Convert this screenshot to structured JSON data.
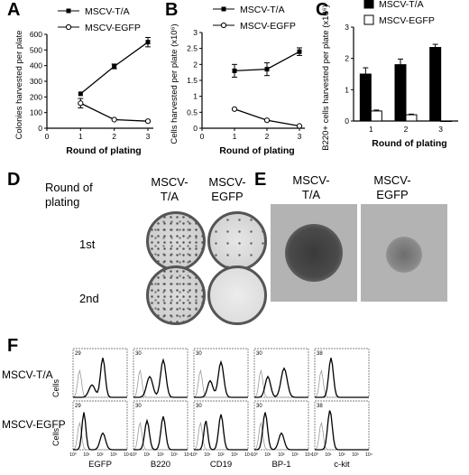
{
  "panels": {
    "A": {
      "letter": "A"
    },
    "B": {
      "letter": "B"
    },
    "C": {
      "letter": "C"
    },
    "D": {
      "letter": "D"
    },
    "E": {
      "letter": "E"
    },
    "F": {
      "letter": "F"
    }
  },
  "chart_data": [
    {
      "id": "A",
      "type": "line",
      "xlabel": "Round of plating",
      "ylabel": "Colonies harvested per plate",
      "xlim": [
        0,
        3
      ],
      "ylim": [
        0,
        600
      ],
      "xticks": [
        "0",
        "1",
        "2",
        "3"
      ],
      "yticks": [
        "0",
        "100",
        "200",
        "300",
        "400",
        "500",
        "600"
      ],
      "legend_position": "top-left",
      "series": [
        {
          "name": "MSCV-T/A",
          "marker": "filled-square",
          "x": [
            1,
            2,
            3
          ],
          "y": [
            220,
            395,
            550
          ],
          "err": [
            0,
            15,
            30
          ]
        },
        {
          "name": "MSCV-EGFP",
          "marker": "open-circle",
          "x": [
            1,
            2,
            3
          ],
          "y": [
            160,
            55,
            45
          ],
          "err": [
            30,
            0,
            0
          ]
        }
      ]
    },
    {
      "id": "B",
      "type": "line",
      "xlabel": "Round of plating",
      "ylabel": "Cells harvested per plate (x10⁶)",
      "xlim": [
        0,
        3
      ],
      "ylim": [
        0,
        3
      ],
      "xticks": [
        "0",
        "1",
        "2",
        "3"
      ],
      "yticks": [
        "0",
        "0.5",
        "1",
        "1.5",
        "2",
        "2.5",
        "3"
      ],
      "legend_position": "top-left",
      "series": [
        {
          "name": "MSCV-T/A",
          "marker": "filled-square",
          "x": [
            1,
            2,
            3
          ],
          "y": [
            1.8,
            1.85,
            2.4
          ],
          "err": [
            0.2,
            0.2,
            0.12
          ]
        },
        {
          "name": "MSCV-EGFP",
          "marker": "open-circle",
          "x": [
            1,
            2,
            3
          ],
          "y": [
            0.6,
            0.25,
            0.07
          ],
          "err": [
            0,
            0,
            0
          ]
        }
      ]
    },
    {
      "id": "C",
      "type": "bar",
      "xlabel": "Round of plating",
      "ylabel": "B220+ cells harvested per plate (x10⁶)",
      "categories": [
        "1",
        "2",
        "3"
      ],
      "ylim": [
        0,
        3
      ],
      "yticks": [
        "0",
        "1",
        "2",
        "3"
      ],
      "legend_position": "top-left",
      "series": [
        {
          "name": "MSCV-T/A",
          "fill": "black",
          "values": [
            1.5,
            1.8,
            2.35
          ],
          "err": [
            0.2,
            0.18,
            0.1
          ]
        },
        {
          "name": "MSCV-EGFP",
          "fill": "white",
          "values": [
            0.32,
            0.2,
            0.0
          ],
          "err": [
            0.03,
            0.02,
            0
          ]
        }
      ]
    }
  ],
  "panel_d": {
    "header_row": [
      "Round of",
      "plating"
    ],
    "col1": [
      "MSCV-",
      "T/A"
    ],
    "col2": [
      "MSCV-",
      "EGFP"
    ],
    "rows": [
      "1st",
      "2nd"
    ]
  },
  "panel_e": {
    "col1": [
      "MSCV-",
      "T/A"
    ],
    "col2": [
      "MSCV-",
      "EGFP"
    ]
  },
  "panel_f": {
    "row_labels": [
      "MSCV-T/A",
      "MSCV-EGFP"
    ],
    "ylabel": "Cells",
    "markers": [
      "EGFP",
      "B220",
      "CD19",
      "BP-1",
      "c-kit"
    ],
    "ymax_labels": [
      [
        "29",
        "30",
        "30",
        "30",
        "38"
      ],
      [
        "29",
        "30",
        "30",
        "30",
        "38"
      ]
    ],
    "tick_labels": [
      "10⁰",
      "10¹",
      "10²",
      "10³",
      "10⁴"
    ]
  }
}
